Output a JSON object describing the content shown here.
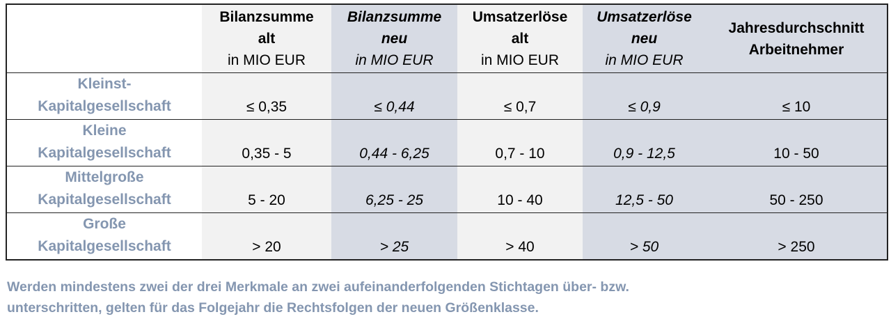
{
  "table": {
    "header": [
      {
        "lines": [
          ""
        ]
      },
      {
        "lines": [
          "Bilanzsumme",
          "alt",
          "in MIO EUR"
        ]
      },
      {
        "lines": [
          "Bilanzsumme",
          "neu",
          "in MIO EUR"
        ]
      },
      {
        "lines": [
          "Umsatzerlöse",
          "alt",
          "in MIO EUR"
        ]
      },
      {
        "lines": [
          "Umsatzerlöse",
          "neu",
          "in MIO EUR"
        ]
      },
      {
        "lines": [
          "Jahresdurchschnitt",
          "Arbeitnehmer"
        ]
      }
    ],
    "rows": [
      {
        "label": [
          "Kleinst-",
          "Kapitalgesellschaft"
        ],
        "cells": [
          "≤ 0,35",
          "≤ 0,44",
          "≤ 0,7",
          "≤ 0,9",
          "≤ 10"
        ]
      },
      {
        "label": [
          "Kleine",
          "Kapitalgesellschaft"
        ],
        "cells": [
          "0,35 - 5",
          "0,44 - 6,25",
          "0,7 - 10",
          "0,9 - 12,5",
          "10 - 50"
        ]
      },
      {
        "label": [
          "Mittelgroße",
          "Kapitalgesellschaft"
        ],
        "cells": [
          "5 - 20",
          "6,25 - 25",
          "10 - 40",
          "12,5 - 50",
          "50 - 250"
        ]
      },
      {
        "label": [
          "Große",
          "Kapitalgesellschaft"
        ],
        "cells": [
          "> 20",
          "> 25",
          "> 40",
          "> 50",
          "> 250"
        ]
      }
    ]
  },
  "footnote": [
    "Werden mindestens zwei der drei Merkmale an zwei aufeinanderfolgenden Stichtagen über- bzw.",
    "unterschritten, gelten für das Folgejahr die Rechtsfolgen der neuen Größenklasse."
  ]
}
